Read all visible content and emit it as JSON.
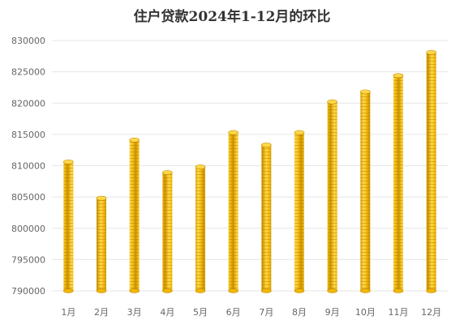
{
  "chart_data": {
    "type": "bar",
    "title": "住户贷款2024年1-12月的环比",
    "categories": [
      "1月",
      "2月",
      "3月",
      "4月",
      "5月",
      "6月",
      "7月",
      "8月",
      "9月",
      "10月",
      "11月",
      "12月"
    ],
    "values": [
      810600,
      804800,
      814100,
      808900,
      809800,
      815300,
      813300,
      815300,
      820200,
      821800,
      824400,
      828100
    ],
    "xlabel": "",
    "ylabel": "",
    "ylim": [
      790000,
      830000
    ],
    "yticks": [
      790000,
      795000,
      800000,
      805000,
      810000,
      815000,
      820000,
      825000,
      830000
    ],
    "grid": true,
    "legend": "none",
    "colors": {
      "bar": "#f2b705",
      "bar_light": "#ffd84a",
      "bar_dark": "#c48d00",
      "grid": "#e6e6e6",
      "axis_text": "#666666",
      "title": "#333333"
    }
  }
}
